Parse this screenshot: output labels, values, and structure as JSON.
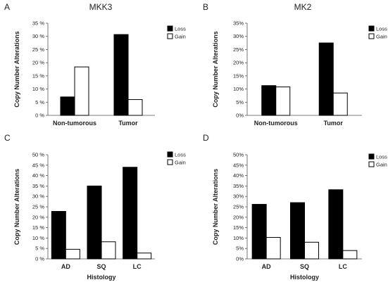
{
  "chart_data": [
    {
      "panel": "A",
      "title": "MKK3",
      "type": "bar",
      "categories": [
        "Non-tumorous",
        "Tumor"
      ],
      "series": [
        {
          "name": "Loss",
          "color": "#000000",
          "values": [
            7,
            30.7
          ]
        },
        {
          "name": "Gain",
          "color": "#ffffff",
          "values": [
            18.4,
            6
          ]
        }
      ],
      "ylabel": "Copy Number Alterations",
      "xlabel": "",
      "ylim": [
        0,
        35
      ],
      "ytick_step": 5,
      "yticks": [
        "0 %",
        "5 %",
        "10 %",
        "15 %",
        "20 %",
        "25 %",
        "30 %",
        "35 %"
      ],
      "legend": "top-right"
    },
    {
      "panel": "B",
      "title": "MK2",
      "type": "bar",
      "categories": [
        "Non-tumorous",
        "Tumor"
      ],
      "series": [
        {
          "name": "Loss",
          "color": "#000000",
          "values": [
            11.3,
            27.5
          ]
        },
        {
          "name": "Gain",
          "color": "#ffffff",
          "values": [
            10.8,
            8.5
          ]
        }
      ],
      "ylabel": "Copy Number Alterations",
      "xlabel": "",
      "ylim": [
        0,
        35
      ],
      "ytick_step": 5,
      "yticks": [
        "0%",
        "5%",
        "10%",
        "15%",
        "20%",
        "25%",
        "30%",
        "35%"
      ],
      "legend": "top-right"
    },
    {
      "panel": "C",
      "title": "",
      "type": "bar",
      "categories": [
        "AD",
        "SQ",
        "LC"
      ],
      "series": [
        {
          "name": "Loss",
          "color": "#000000",
          "values": [
            22.8,
            35,
            44
          ]
        },
        {
          "name": "Gain",
          "color": "#ffffff",
          "values": [
            4.6,
            8.2,
            2.8
          ]
        }
      ],
      "ylabel": "Copy Number Alterations",
      "xlabel": "Histology",
      "ylim": [
        0,
        50
      ],
      "ytick_step": 5,
      "yticks": [
        "0 %",
        "5 %",
        "10 %",
        "15 %",
        "20 %",
        "25 %",
        "30 %",
        "35 %",
        "40 %",
        "45 %",
        "50 %"
      ],
      "legend": "top-right"
    },
    {
      "panel": "D",
      "title": "",
      "type": "bar",
      "categories": [
        "AD",
        "SQ",
        "LC"
      ],
      "series": [
        {
          "name": "Loss",
          "color": "#000000",
          "values": [
            26.2,
            27,
            33.2
          ]
        },
        {
          "name": "Gain",
          "color": "#ffffff",
          "values": [
            10.3,
            8,
            4
          ]
        }
      ],
      "ylabel": "Copy Number Alterations",
      "xlabel": "Histology",
      "ylim": [
        0,
        50
      ],
      "ytick_step": 5,
      "yticks": [
        "0%",
        "5%",
        "10%",
        "15%",
        "20%",
        "25%",
        "30%",
        "35%",
        "40%",
        "45%",
        "50%"
      ],
      "legend": "top-right"
    }
  ]
}
